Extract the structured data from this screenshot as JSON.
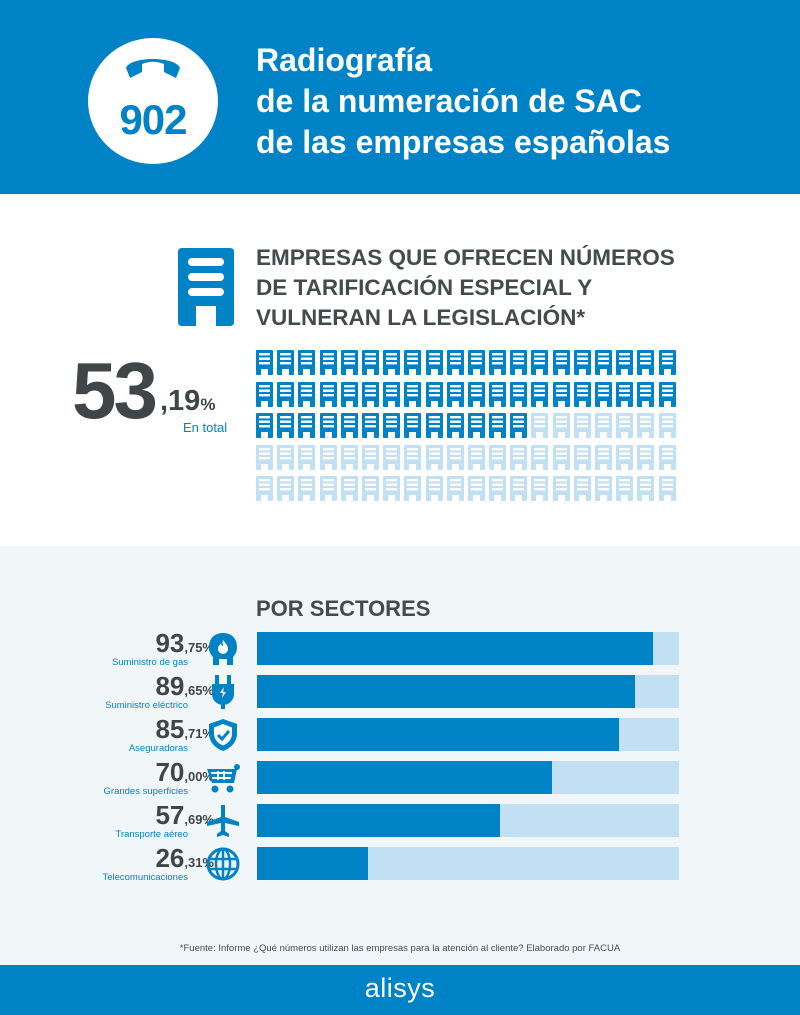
{
  "header": {
    "logo_number": "902",
    "title_lines": [
      "Radiografía",
      "de la numeración de SAC",
      "de las empresas españolas"
    ]
  },
  "section_total": {
    "heading_lines": [
      "EMPRESAS QUE OFRECEN NÚMEROS",
      "DE TARIFICACIÓN ESPECIAL Y",
      "VULNERAN LA LEGISLACIÓN*"
    ],
    "value_int": "53",
    "value_dec": ",19",
    "value_pct": "%",
    "caption": "En total",
    "grid_total": 100,
    "grid_filled": 53
  },
  "section_sectors": {
    "heading": "POR SECTORES",
    "rows": [
      {
        "int": "93",
        "dec": ",75%",
        "label": "Suministro de gas",
        "icon": "gas-tank-icon",
        "value": 93.75
      },
      {
        "int": "89",
        "dec": ",65%",
        "label": "Suministro eléctrico",
        "icon": "plug-icon",
        "value": 89.65
      },
      {
        "int": "85",
        "dec": ",71%",
        "label": "Aseguradoras",
        "icon": "shield-check-icon",
        "value": 85.71
      },
      {
        "int": "70",
        "dec": ",00%",
        "label": "Grandes superficies",
        "icon": "shopping-cart-icon",
        "value": 70.0
      },
      {
        "int": "57",
        "dec": ",69%",
        "label": "Transporte aéreo",
        "icon": "airplane-icon",
        "value": 57.69
      },
      {
        "int": "26",
        "dec": ",31%",
        "label": "Telecomunicaciones",
        "icon": "globe-phone-icon",
        "value": 26.31
      }
    ]
  },
  "source": "*Fuente: Informe ¿Qué números utilizan las empresas para la atención al cliente? Elaborado por FACUA",
  "footer": {
    "brand": "alisys"
  },
  "colors": {
    "primary": "#0083c6",
    "light": "#c2e0f3",
    "dark_text": "#404547",
    "panel": "#f1f6f9"
  },
  "chart_data": [
    {
      "type": "waffle",
      "title": "Empresas que ofrecen números de tarificación especial y vulneran la legislación",
      "value": 53.19,
      "unit": "%",
      "grid": [
        20,
        5
      ],
      "filled_cells": 53
    },
    {
      "type": "bar",
      "orientation": "horizontal",
      "title": "Por sectores",
      "categories": [
        "Suministro de gas",
        "Suministro eléctrico",
        "Aseguradoras",
        "Grandes superficies",
        "Transporte aéreo",
        "Telecomunicaciones"
      ],
      "values": [
        93.75,
        89.65,
        85.71,
        70.0,
        57.69,
        26.31
      ],
      "unit": "%",
      "xlim": [
        0,
        100
      ]
    }
  ]
}
